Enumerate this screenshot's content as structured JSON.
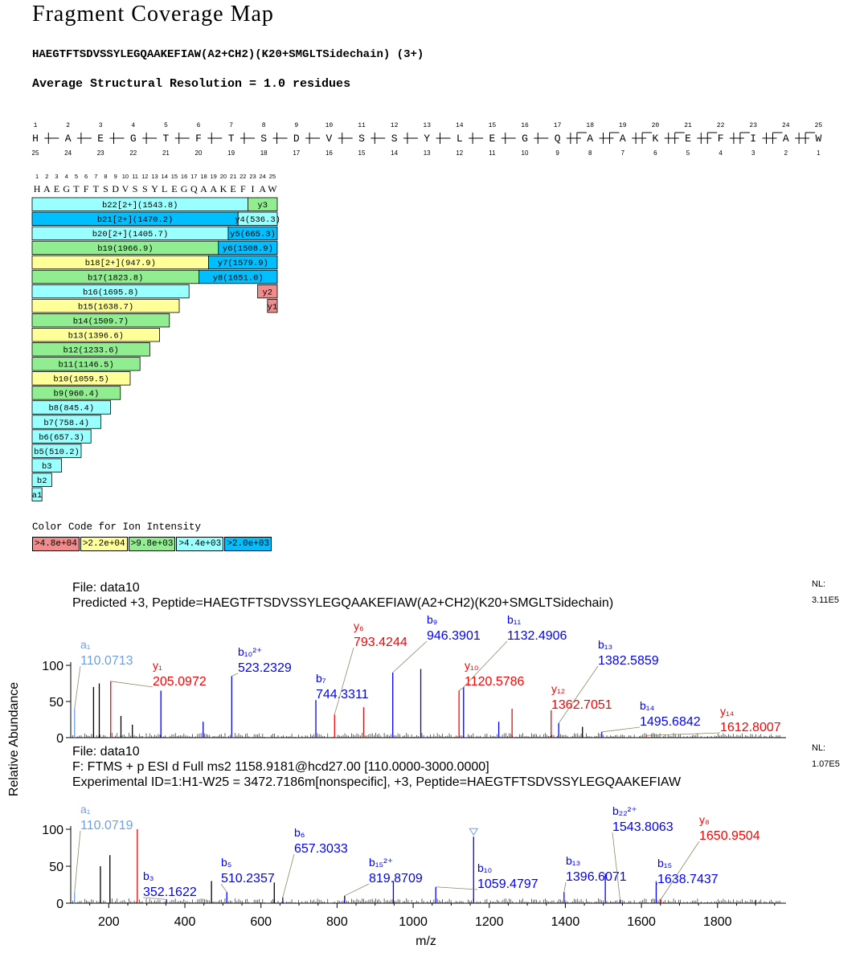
{
  "title": "Fragment Coverage Map",
  "peptide_header": "HAEGTFTSDVSSYLEGQAAKEFIAW(A2+CH2)(K20+SMGLTSidechain) (3+)",
  "resolution_text": "Average Structural Resolution = 1.0 residues",
  "sequence": [
    "H",
    "A",
    "E",
    "G",
    "T",
    "F",
    "T",
    "S",
    "D",
    "V",
    "S",
    "S",
    "Y",
    "L",
    "E",
    "G",
    "Q",
    "A",
    "A",
    "K",
    "E",
    "F",
    "I",
    "A",
    "W"
  ],
  "colors": {
    "c48": "#f28c8c",
    "c22": "#ffff99",
    "c98": "#90ee90",
    "c44": "#99ffff",
    "c20": "#00bfff",
    "blue": "#0000ff",
    "red": "#ff0000",
    "lightblue": "#6f9fe6",
    "gray": "#555555"
  },
  "coverage": {
    "rows": [
      {
        "b": {
          "label": "b22[2+](1543.8)",
          "pos": 22,
          "color": "c44"
        },
        "y": {
          "label": "y3",
          "pos": 3,
          "color": "c98"
        }
      },
      {
        "b": {
          "label": "b21[2+](1470.2)",
          "pos": 21,
          "color": "c20"
        },
        "y": {
          "label": "y4(536.3)",
          "pos": 4,
          "color": "c44"
        }
      },
      {
        "b": {
          "label": "b20[2+](1405.7)",
          "pos": 20,
          "color": "c44"
        },
        "y": {
          "label": "y5(665.3)",
          "pos": 5,
          "color": "c20"
        }
      },
      {
        "b": {
          "label": "b19(1966.9)",
          "pos": 19,
          "color": "c98"
        },
        "y": {
          "label": "y6(1508.9)",
          "pos": 6,
          "color": "c20"
        }
      },
      {
        "b": {
          "label": "b18[2+](947.9)",
          "pos": 18,
          "color": "c22"
        },
        "y": {
          "label": "y7(1579.9)",
          "pos": 7,
          "color": "c20"
        }
      },
      {
        "b": {
          "label": "b17(1823.8)",
          "pos": 17,
          "color": "c98"
        },
        "y": {
          "label": "y8(1651.0)",
          "pos": 8,
          "color": "c20"
        }
      },
      {
        "b": {
          "label": "b16(1695.8)",
          "pos": 16,
          "color": "c44"
        },
        "y": {
          "label": "y2",
          "pos": 2,
          "color": "c48"
        }
      },
      {
        "b": {
          "label": "b15(1638.7)",
          "pos": 15,
          "color": "c22"
        },
        "y": {
          "label": "y1",
          "pos": 1,
          "color": "c48"
        }
      },
      {
        "b": {
          "label": "b14(1509.7)",
          "pos": 14,
          "color": "c98"
        }
      },
      {
        "b": {
          "label": "b13(1396.6)",
          "pos": 13,
          "color": "c22"
        }
      },
      {
        "b": {
          "label": "b12(1233.6)",
          "pos": 12,
          "color": "c98"
        }
      },
      {
        "b": {
          "label": "b11(1146.5)",
          "pos": 11,
          "color": "c98"
        }
      },
      {
        "b": {
          "label": "b10(1059.5)",
          "pos": 10,
          "color": "c22"
        }
      },
      {
        "b": {
          "label": "b9(960.4)",
          "pos": 9,
          "color": "c98"
        }
      },
      {
        "b": {
          "label": "b8(845.4)",
          "pos": 8,
          "color": "c44"
        }
      },
      {
        "b": {
          "label": "b7(758.4)",
          "pos": 7,
          "color": "c44"
        }
      },
      {
        "b": {
          "label": "b6(657.3)",
          "pos": 6,
          "color": "c44"
        }
      },
      {
        "b": {
          "label": "b5(510.2)",
          "pos": 5,
          "color": "c44"
        }
      },
      {
        "b": {
          "label": "b3",
          "pos": 3,
          "color": "c44"
        }
      },
      {
        "b": {
          "label": "b2",
          "pos": 2,
          "color": "c44"
        }
      },
      {
        "b": {
          "label": "a1",
          "pos": 1,
          "color": "c44"
        }
      }
    ]
  },
  "legend": {
    "title": "Color Code for Ion Intensity",
    "items": [
      {
        "label": ">4.8e+04",
        "color": "c48"
      },
      {
        "label": ">2.2e+04",
        "color": "c22"
      },
      {
        "label": ">9.8e+03",
        "color": "c98"
      },
      {
        "label": ">4.4e+03",
        "color": "c44"
      },
      {
        "label": ">2.0e+03",
        "color": "c20"
      }
    ]
  },
  "chart_data": [
    {
      "type": "bar",
      "panel": "predicted",
      "header": [
        "File: data10",
        "Predicted +3, Peptide=HAEGTFTSDVSSYLEGQAAKEFIAW(A2+CH2)(K20+SMGLTSidechain)"
      ],
      "nl_label": "NL:",
      "nl_value": "3.11E5",
      "xlim": [
        100,
        1980
      ],
      "ylim": [
        0,
        100
      ],
      "yticks": [
        0,
        50,
        100
      ],
      "peaks": [
        {
          "mz": 110.07,
          "int": 40,
          "c": "lightblue"
        },
        {
          "mz": 205.1,
          "int": 78,
          "c": "red"
        },
        {
          "mz": 337,
          "int": 65,
          "c": "blue"
        },
        {
          "mz": 523.23,
          "int": 85,
          "c": "blue"
        },
        {
          "mz": 744.33,
          "int": 52,
          "c": "blue"
        },
        {
          "mz": 793.42,
          "int": 32,
          "c": "red"
        },
        {
          "mz": 946.39,
          "int": 90,
          "c": "blue"
        },
        {
          "mz": 1120.58,
          "int": 65,
          "c": "red"
        },
        {
          "mz": 1132.49,
          "int": 70,
          "c": "blue"
        },
        {
          "mz": 1362.71,
          "int": 38,
          "c": "red"
        },
        {
          "mz": 1382.59,
          "int": 20,
          "c": "blue"
        },
        {
          "mz": 1495.68,
          "int": 8,
          "c": "blue"
        },
        {
          "mz": 1612.8,
          "int": 3,
          "c": "red"
        },
        {
          "mz": 160,
          "int": 70,
          "c": "black"
        },
        {
          "mz": 175,
          "int": 75,
          "c": "black"
        },
        {
          "mz": 232,
          "int": 30,
          "c": "black"
        },
        {
          "mz": 262,
          "int": 18,
          "c": "black"
        },
        {
          "mz": 448,
          "int": 22,
          "c": "blue"
        },
        {
          "mz": 870,
          "int": 42,
          "c": "red"
        },
        {
          "mz": 1020,
          "int": 95,
          "c": "blue"
        },
        {
          "mz": 1225,
          "int": 22,
          "c": "blue"
        },
        {
          "mz": 1260,
          "int": 40,
          "c": "red"
        },
        {
          "mz": 1445,
          "int": 15,
          "c": "black"
        }
      ],
      "labels": [
        {
          "ion": "a",
          "sub": "₁",
          "sup": "",
          "mz": "110.0713",
          "c": "lightblue",
          "peak": 110.07
        },
        {
          "ion": "y",
          "sub": "₁",
          "sup": "",
          "mz": "205.0972",
          "c": "red",
          "peak": 205.1
        },
        {
          "ion": "b",
          "sub": "₁₀",
          "sup": "²⁺",
          "mz": "523.2329",
          "c": "blue",
          "peak": 523.23
        },
        {
          "ion": "b",
          "sub": "₇",
          "sup": "",
          "mz": "744.3311",
          "c": "blue",
          "peak": 744.33
        },
        {
          "ion": "y",
          "sub": "₆",
          "sup": "",
          "mz": "793.4244",
          "c": "red",
          "peak": 793.42
        },
        {
          "ion": "b",
          "sub": "₉",
          "sup": "",
          "mz": "946.3901",
          "c": "blue",
          "peak": 946.39
        },
        {
          "ion": "y",
          "sub": "₁₀",
          "sup": "",
          "mz": "1120.5786",
          "c": "red",
          "peak": 1120.58
        },
        {
          "ion": "b",
          "sub": "₁₁",
          "sup": "",
          "mz": "1132.4906",
          "c": "blue",
          "peak": 1132.49
        },
        {
          "ion": "y",
          "sub": "₁₂",
          "sup": "",
          "mz": "1362.7051",
          "c": "red",
          "peak": 1362.71
        },
        {
          "ion": "b",
          "sub": "₁₃",
          "sup": "",
          "mz": "1382.5859",
          "c": "blue",
          "peak": 1382.59
        },
        {
          "ion": "b",
          "sub": "₁₄",
          "sup": "",
          "mz": "1495.6842",
          "c": "blue",
          "peak": 1495.68
        },
        {
          "ion": "y",
          "sub": "₁₄",
          "sup": "",
          "mz": "1612.8007",
          "c": "red",
          "peak": 1612.8
        }
      ]
    },
    {
      "type": "bar",
      "panel": "experimental",
      "header": [
        "File: data10",
        "F: FTMS + p ESI d Full ms2 1158.9181@hcd27.00 [110.0000-3000.0000]",
        "Experimental ID=1:H1-W25 = 3472.7186m[nonspecific], +3, Peptide=HAEGTFTSDVSSYLEGQAAKEFIAW"
      ],
      "nl_label": "NL:",
      "nl_value": "1.07E5",
      "xlim": [
        100,
        1980
      ],
      "ylim": [
        0,
        100
      ],
      "yticks": [
        0,
        50,
        100
      ],
      "xlabel": "m/z",
      "ylabel": "Relative Abundance",
      "xticks": [
        200,
        400,
        600,
        800,
        1000,
        1200,
        1400,
        1600,
        1800
      ],
      "peaks": [
        {
          "mz": 110.07,
          "int": 15,
          "c": "lightblue"
        },
        {
          "mz": 178,
          "int": 50,
          "c": "black"
        },
        {
          "mz": 203,
          "int": 65,
          "c": "black"
        },
        {
          "mz": 275,
          "int": 100,
          "c": "red"
        },
        {
          "mz": 352.16,
          "int": 5,
          "c": "blue"
        },
        {
          "mz": 470,
          "int": 30,
          "c": "black"
        },
        {
          "mz": 510.24,
          "int": 15,
          "c": "blue"
        },
        {
          "mz": 635,
          "int": 28,
          "c": "black"
        },
        {
          "mz": 657.3,
          "int": 8,
          "c": "blue"
        },
        {
          "mz": 820,
          "int": 10,
          "c": "black"
        },
        {
          "mz": 819.87,
          "int": 5,
          "c": "blue"
        },
        {
          "mz": 948,
          "int": 30,
          "c": "blue"
        },
        {
          "mz": 1059.48,
          "int": 22,
          "c": "blue"
        },
        {
          "mz": 1158.9,
          "int": 90,
          "c": "blue",
          "precursor": true
        },
        {
          "mz": 1396.61,
          "int": 15,
          "c": "blue"
        },
        {
          "mz": 1505,
          "int": 40,
          "c": "blue"
        },
        {
          "mz": 1543.81,
          "int": 5,
          "c": "blue"
        },
        {
          "mz": 1638.74,
          "int": 30,
          "c": "blue"
        },
        {
          "mz": 1650.95,
          "int": 5,
          "c": "red"
        },
        {
          "mz": 1900,
          "int": 4,
          "c": "black"
        }
      ],
      "labels": [
        {
          "ion": "a",
          "sub": "₁",
          "sup": "",
          "mz": "110.0719",
          "c": "lightblue",
          "peak": 110.07
        },
        {
          "ion": "b",
          "sub": "₃",
          "sup": "",
          "mz": "352.1622",
          "c": "blue",
          "peak": 352.16
        },
        {
          "ion": "b",
          "sub": "₅",
          "sup": "",
          "mz": "510.2357",
          "c": "blue",
          "peak": 510.24
        },
        {
          "ion": "b",
          "sub": "₆",
          "sup": "",
          "mz": "657.3033",
          "c": "blue",
          "peak": 657.3
        },
        {
          "ion": "b",
          "sub": "₁₅",
          "sup": "²⁺",
          "mz": "819.8709",
          "c": "blue",
          "peak": 819.87
        },
        {
          "ion": "b",
          "sub": "₁₀",
          "sup": "",
          "mz": "1059.4797",
          "c": "blue",
          "peak": 1059.48
        },
        {
          "ion": "b",
          "sub": "₁₃",
          "sup": "",
          "mz": "1396.6071",
          "c": "blue",
          "peak": 1396.61
        },
        {
          "ion": "b",
          "sub": "₂₂",
          "sup": "²⁺",
          "mz": "1543.8063",
          "c": "blue",
          "peak": 1543.81
        },
        {
          "ion": "b",
          "sub": "₁₅",
          "sup": "",
          "mz": "1638.7437",
          "c": "blue",
          "peak": 1638.74
        },
        {
          "ion": "y",
          "sub": "₈",
          "sup": "",
          "mz": "1650.9504",
          "c": "red",
          "peak": 1650.95
        }
      ]
    }
  ]
}
